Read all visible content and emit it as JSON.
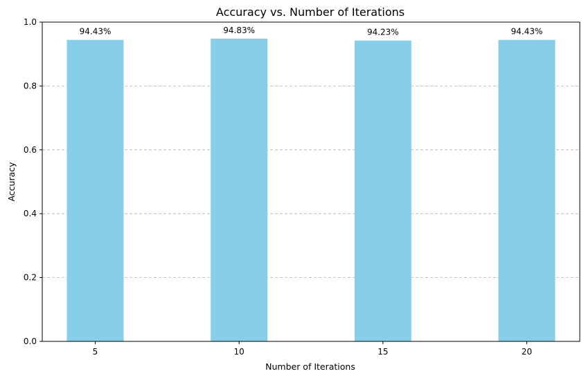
{
  "chart_data": {
    "type": "bar",
    "title": "Accuracy vs. Number of Iterations",
    "xlabel": "Number of Iterations",
    "ylabel": "Accuracy",
    "categories": [
      "5",
      "10",
      "15",
      "20"
    ],
    "values": [
      0.9443,
      0.9483,
      0.9423,
      0.9443
    ],
    "data_labels": [
      "94.43%",
      "94.83%",
      "94.23%",
      "94.43%"
    ],
    "ylim": [
      0,
      1.0
    ],
    "yticks": [
      0.0,
      0.2,
      0.4,
      0.6,
      0.8,
      1.0
    ],
    "ytick_labels": [
      "0.0",
      "0.2",
      "0.4",
      "0.6",
      "0.8",
      "1.0"
    ],
    "grid": "y-dashed",
    "bar_color": "#87ceeb"
  }
}
